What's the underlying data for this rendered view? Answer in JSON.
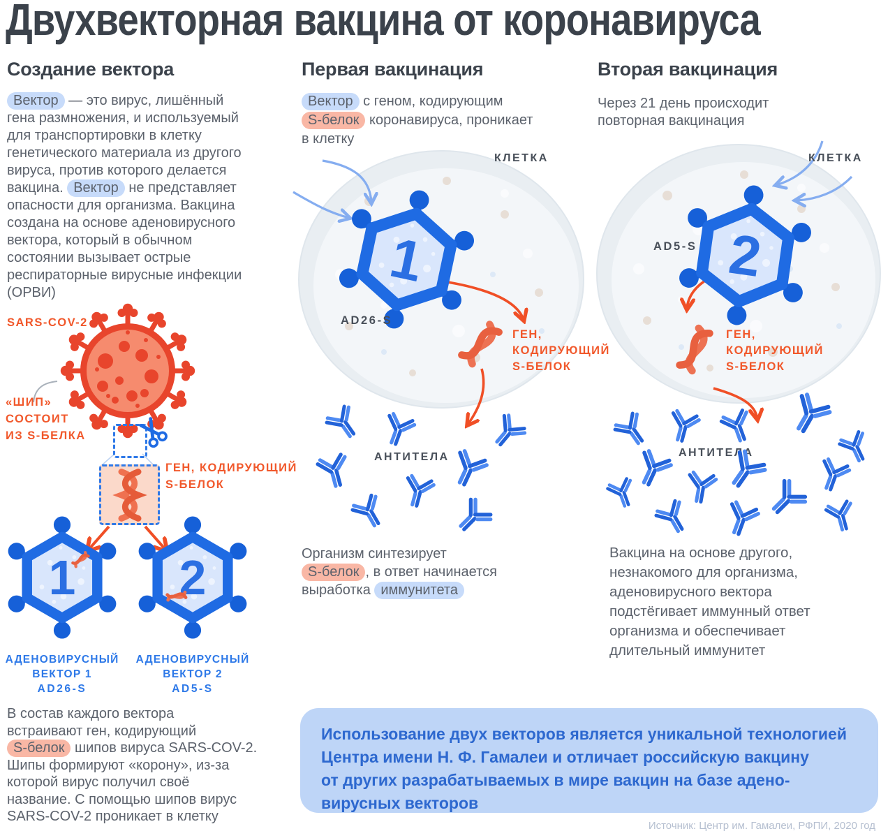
{
  "page": {
    "title": "Двухвекторная вакцина от коронавируса",
    "source": "Источник: Центр им. Гамалеи, РФПИ, 2020 год"
  },
  "colors": {
    "heading": "#3B424B",
    "body_text": "#5C626C",
    "orange_accent": "#F1582B",
    "blue_accent": "#2E79E8",
    "pill_blue": "#C7DBFA",
    "pill_salmon": "#F9B7A5",
    "infobox_bg": "#BED5F7",
    "infobox_text": "#2D68CF"
  },
  "icons": {
    "virus": "sars-cov2-virus",
    "scissors": "scissors",
    "dna": "dna-helix",
    "gene": "gene-squiggle",
    "vector": "hexagon-adenovirus",
    "antibody": "y-antibody",
    "cell": "cell-blob"
  },
  "col1": {
    "heading": "Создание вектора",
    "intro": [
      {
        "t": "Вектор",
        "h": "blue"
      },
      {
        "t": " — это вирус, лишённый\nгена размножения, и используемый\nдля транспортировки в клетку\nгенетического материала из другого\nвируса, против которого делается\nвакцина. "
      },
      {
        "t": "Вектор",
        "h": "blue"
      },
      {
        "t": " не представляет\nопасности для организма. Вакцина\nсоздана на основе аденовирусного\nвектора, который в обычном\nсостоянии вызывает острые\nреспираторные вирусные инфекции\n(ОРВИ)"
      }
    ],
    "virus_name": "SARS-COV-2",
    "spike_note": "«ШИП»\nСОСТОИТ\nИЗ S-БЕЛКА",
    "gene_note": "ГЕН, КОДИРУЮЩИЙ\nS-БЕЛОК",
    "vectors": [
      {
        "number": "1",
        "lines": [
          "АДЕНОВИРУСНЫЙ",
          "ВЕКТОР 1",
          "AD26-S"
        ]
      },
      {
        "number": "2",
        "lines": [
          "АДЕНОВИРУСНЫЙ",
          "ВЕКТОР 2",
          "AD5-S"
        ]
      }
    ],
    "outro": [
      {
        "t": "В состав каждого вектора\nвстраивают ген, кодирующий\n"
      },
      {
        "t": "S-белок",
        "h": "salmon"
      },
      {
        "t": " шипов вируса SARS-COV-2.\nШипы формируют «корону», из-за\nкоторой вирус получил своё\nназвание. С помощью шипов вирус\nSARS-COV-2 проникает в клетку"
      }
    ]
  },
  "col2": {
    "heading": "Первая вакцинация",
    "intro": [
      {
        "t": "Вектор",
        "h": "blue"
      },
      {
        "t": " с геном, кодирующим\n"
      },
      {
        "t": "S-белок",
        "h": "salmon"
      },
      {
        "t": " коронавируса, проникает\nв клетку"
      }
    ],
    "cell_label": "КЛЕТКА",
    "hex_number": "1",
    "vector_code": "AD26-S",
    "gene_note": "ГЕН,\nКОДИРУЮЩИЙ\nS-БЕЛОК",
    "antibodies_label": "АНТИТЕЛА",
    "outro": [
      {
        "t": "Организм синтезирует\n"
      },
      {
        "t": "S-белок",
        "h": "salmon"
      },
      {
        "t": ", в ответ начинается\nвыработка "
      },
      {
        "t": "иммунитета",
        "h": "blue"
      }
    ]
  },
  "col3": {
    "heading": "Вторая вакцинация",
    "intro": [
      {
        "t": "Через 21 день происходит\nповторная вакцинация"
      }
    ],
    "cell_label": "КЛЕТКА",
    "hex_number": "2",
    "vector_code": "AD5-S",
    "gene_note": "ГЕН,\nКОДИРУЮЩИЙ\nS-БЕЛОК",
    "antibodies_label": "АНТИТЕЛА",
    "outro": [
      {
        "t": "Вакцина на основе другого,\nнезнакомого для организма,\nаденовирусного вектора\nподстёгивает иммунный ответ\nорганизма и обеспечивает\nдлительный иммунитет"
      }
    ]
  },
  "infobox": {
    "text": "Использование двух векторов является уникальной технологией\nЦентра имени Н. Ф. Гамалеи и отличает российскую вакцину\nот других разрабатываемых в мире вакцин на базе адено-\nвирусных векторов"
  }
}
